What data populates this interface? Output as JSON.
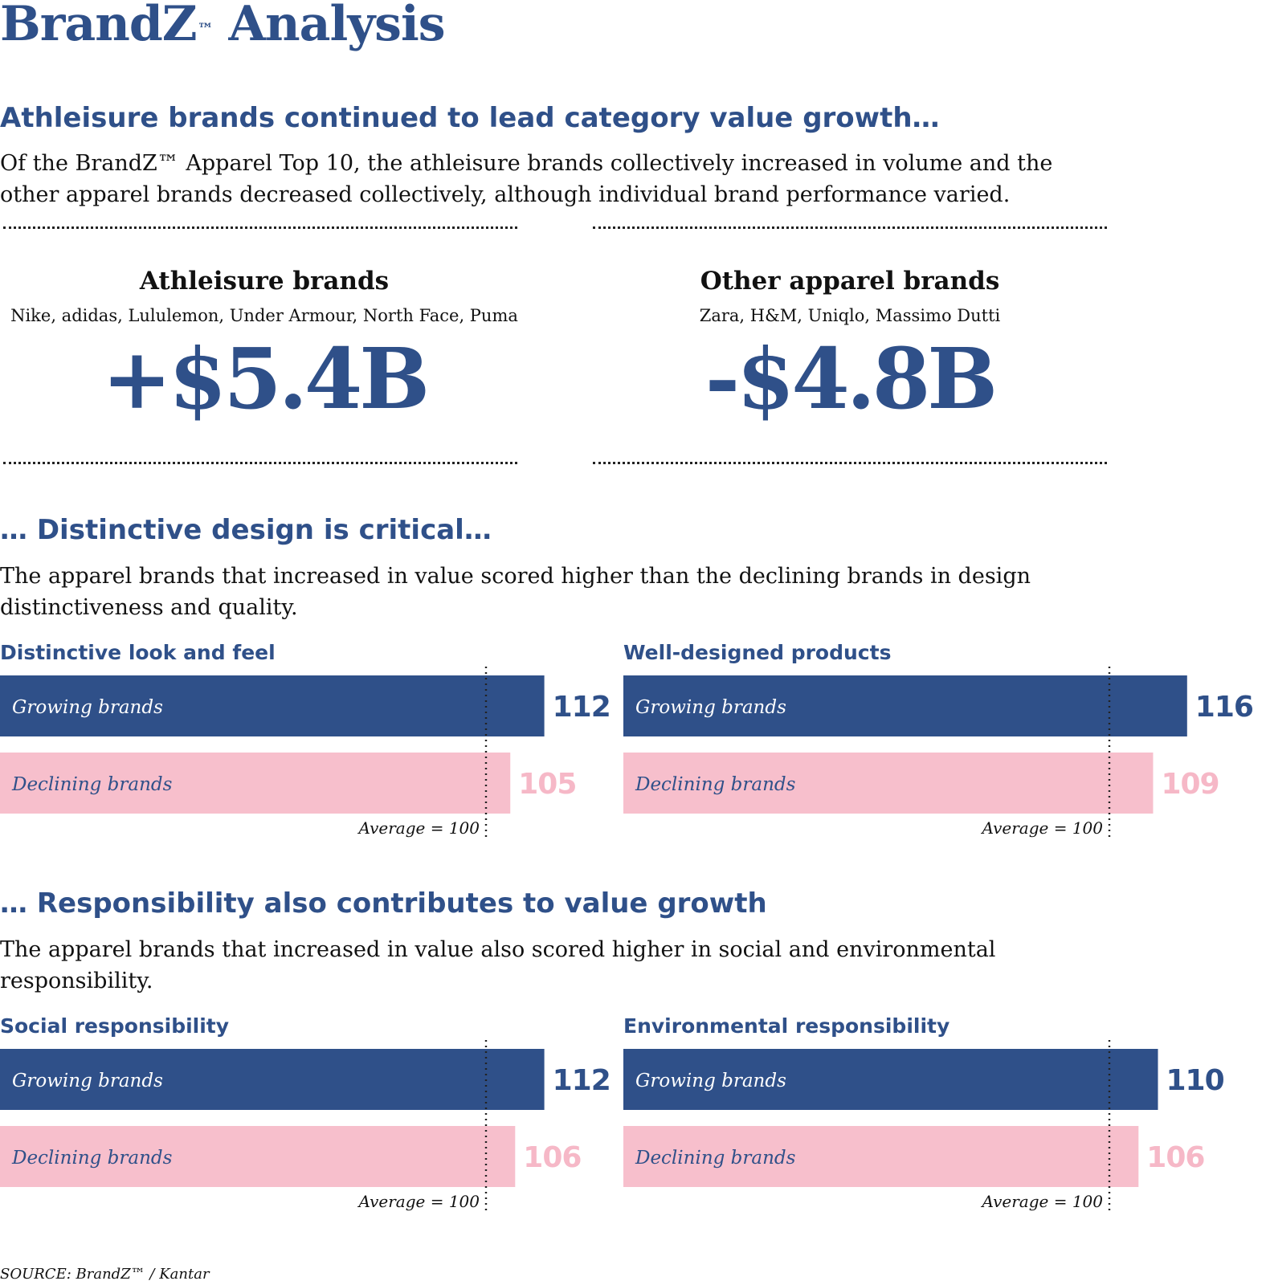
{
  "title": "BrandZ",
  "title_mark": "™",
  "title_rest": " Analysis",
  "section1": {
    "heading": "Athleisure brands continued to lead category value growth…",
    "body": "Of the BrandZ™ Apparel Top 10, the athleisure brands collectively increased in volume and the other apparel brands decreased collectively, although individual brand performance varied."
  },
  "summaries": [
    {
      "heading": "Athleisure brands",
      "brands": "Nike, adidas, Lululemon, Under Armour, North Face, Puma",
      "value": "+$5.4B"
    },
    {
      "heading": "Other apparel brands",
      "brands": "Zara, H&M, Uniqlo, Massimo Dutti",
      "value": "-$4.8B"
    }
  ],
  "section2": {
    "heading": "… Distinctive design is critical…",
    "body": "The apparel brands that increased in value scored higher than the declining brands in design distinctiveness and quality."
  },
  "section3": {
    "heading": "… Responsibility also contributes to value growth",
    "body": "The apparel brands that increased in value also scored higher in social and environmental responsibility."
  },
  "source": "SOURCE: BrandZ™ / Kantar",
  "colors": {
    "growing": "#2f5089",
    "declining": "#f7bfcc",
    "declining_text": "#f6b8c7",
    "accent": "#2f5089"
  },
  "chart_data": [
    {
      "type": "bar",
      "title": "Distinctive look and feel",
      "categories": [
        "Growing brands",
        "Declining brands"
      ],
      "values": [
        112,
        105
      ],
      "reference": {
        "value": 100,
        "label": "Average = 100"
      }
    },
    {
      "type": "bar",
      "title": "Well-designed products",
      "categories": [
        "Growing brands",
        "Declining brands"
      ],
      "values": [
        116,
        109
      ],
      "reference": {
        "value": 100,
        "label": "Average = 100"
      }
    },
    {
      "type": "bar",
      "title": "Social responsibility",
      "categories": [
        "Growing brands",
        "Declining brands"
      ],
      "values": [
        112,
        106
      ],
      "reference": {
        "value": 100,
        "label": "Average = 100"
      }
    },
    {
      "type": "bar",
      "title": "Environmental responsibility",
      "categories": [
        "Growing brands",
        "Declining brands"
      ],
      "values": [
        110,
        106
      ],
      "reference": {
        "value": 100,
        "label": "Average = 100"
      }
    }
  ]
}
